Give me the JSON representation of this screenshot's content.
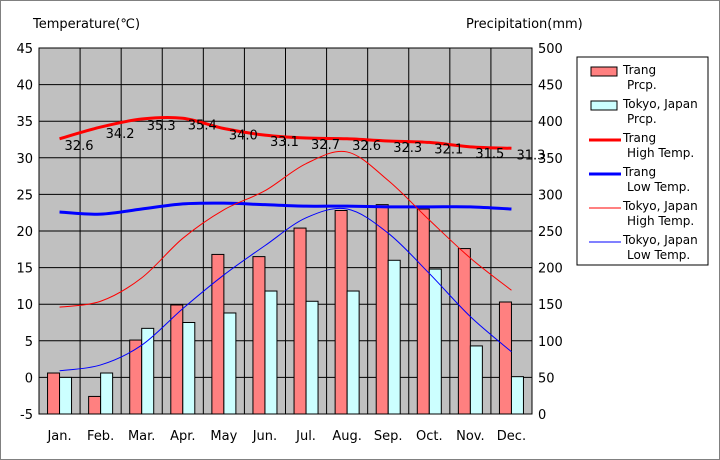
{
  "chart_data": {
    "type": "bar",
    "left_axis_title": "Temperature(℃)",
    "right_axis_title": "Precipitation(mm)",
    "categories": [
      "Jan.",
      "Feb.",
      "Mar.",
      "Apr.",
      "May",
      "Jun.",
      "Jul.",
      "Aug.",
      "Sep.",
      "Oct.",
      "Nov.",
      "Dec."
    ],
    "y_left": {
      "min": -5,
      "max": 45,
      "ticks": [
        "45",
        "40",
        "35",
        "30",
        "25",
        "20",
        "15",
        "10",
        "5",
        "0",
        "-5"
      ]
    },
    "y_right": {
      "min": 0,
      "max": 500,
      "ticks": [
        "500",
        "450",
        "400",
        "350",
        "300",
        "250",
        "200",
        "150",
        "100",
        "50",
        "0"
      ]
    },
    "grid": true,
    "plot_background": "#c0c0c0",
    "legend": {
      "position": "right",
      "entries": [
        {
          "line1": "Trang",
          "line2": "Prcp."
        },
        {
          "line1": "Tokyo, Japan",
          "line2": "Prcp."
        },
        {
          "line1": "Trang",
          "line2": "High Temp."
        },
        {
          "line1": "Trang",
          "line2": "Low Temp."
        },
        {
          "line1": "Tokyo, Japan",
          "line2": "High Temp."
        },
        {
          "line1": "Tokyo, Japan",
          "line2": "Low Temp."
        }
      ]
    },
    "bar_series": [
      {
        "key": "trang_prcp",
        "color": "#ff8080",
        "axis": "right",
        "values": [
          56,
          24,
          101,
          149,
          218,
          215,
          254,
          278,
          286,
          280,
          226,
          153
        ]
      },
      {
        "key": "tokyo_prcp",
        "color": "#ccffff",
        "axis": "right",
        "values": [
          50,
          56,
          117,
          125,
          138,
          168,
          154,
          168,
          210,
          198,
          93,
          51
        ]
      }
    ],
    "line_series": [
      {
        "key": "trang_high",
        "color": "#ff0000",
        "width": 3,
        "axis": "left",
        "values": [
          32.6,
          34.2,
          35.3,
          35.4,
          34.0,
          33.1,
          32.7,
          32.6,
          32.3,
          32.1,
          31.5,
          31.3
        ],
        "data_labels": [
          "32.6",
          "34.2",
          "35.3",
          "35.4",
          "34.0",
          "33.1",
          "32.7",
          "32.6",
          "32.3",
          "32.1",
          "31.5",
          "31.3"
        ]
      },
      {
        "key": "trang_low",
        "color": "#0000ff",
        "width": 3,
        "axis": "left",
        "values": [
          22.6,
          22.3,
          23.0,
          23.7,
          23.8,
          23.6,
          23.4,
          23.4,
          23.3,
          23.3,
          23.3,
          23.0
        ]
      },
      {
        "key": "tokyo_high",
        "color": "#ff0000",
        "width": 1,
        "axis": "left",
        "values": [
          9.6,
          10.4,
          13.6,
          19.0,
          22.9,
          25.5,
          29.2,
          30.8,
          26.9,
          21.5,
          16.3,
          11.9
        ]
      },
      {
        "key": "tokyo_low",
        "color": "#0000ff",
        "width": 1,
        "axis": "left",
        "values": [
          0.9,
          1.7,
          4.4,
          9.4,
          14.0,
          18.0,
          21.8,
          23.0,
          19.7,
          14.2,
          8.3,
          3.5
        ]
      }
    ]
  }
}
